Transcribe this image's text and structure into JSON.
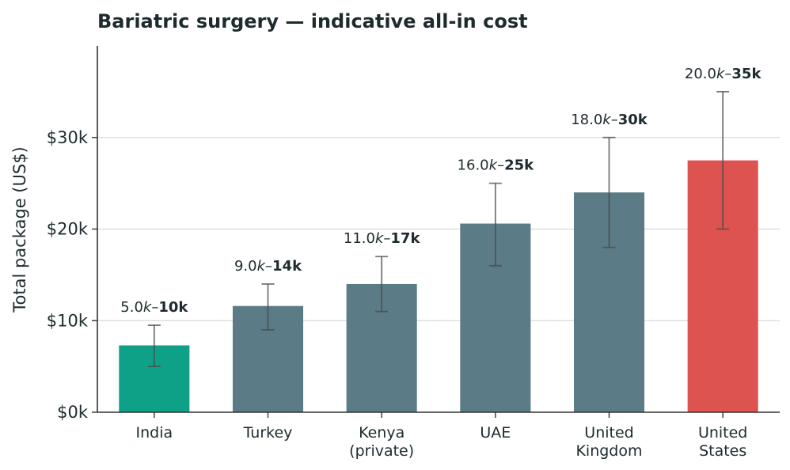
{
  "chart_data": {
    "type": "bar",
    "title": "Bariatric surgery — indicative all-in cost",
    "xlabel": "",
    "ylabel": "Total package (US$)",
    "ylim": [
      0,
      40000
    ],
    "yticks": [
      0,
      10000,
      20000,
      30000
    ],
    "ytick_labels": [
      "$0k",
      "$10k",
      "$20k",
      "$30k"
    ],
    "grid": true,
    "categories": [
      [
        "India"
      ],
      [
        "Turkey"
      ],
      [
        "Kenya",
        "(private)"
      ],
      [
        "UAE"
      ],
      [
        "United",
        "Kingdom"
      ],
      [
        "United",
        "States"
      ]
    ],
    "values": [
      7300,
      11600,
      14000,
      20600,
      24000,
      27500
    ],
    "low": [
      5000,
      9000,
      11000,
      16000,
      18000,
      20000
    ],
    "high": [
      9500,
      14000,
      17000,
      25000,
      30000,
      35000
    ],
    "range_labels": [
      [
        "5.0",
        "k",
        "–",
        "10k"
      ],
      [
        "9.0",
        "k",
        "–",
        "14k"
      ],
      [
        "11.0",
        "k",
        "–",
        "17k"
      ],
      [
        "16.0",
        "k",
        "–",
        "25k"
      ],
      [
        "18.0",
        "k",
        "–",
        "30k"
      ],
      [
        "20.0",
        "k",
        "–",
        "35k"
      ]
    ],
    "colors": [
      "#0fa187",
      "#5b7b87",
      "#5b7b87",
      "#5b7b87",
      "#5b7b87",
      "#dc5350"
    ]
  }
}
